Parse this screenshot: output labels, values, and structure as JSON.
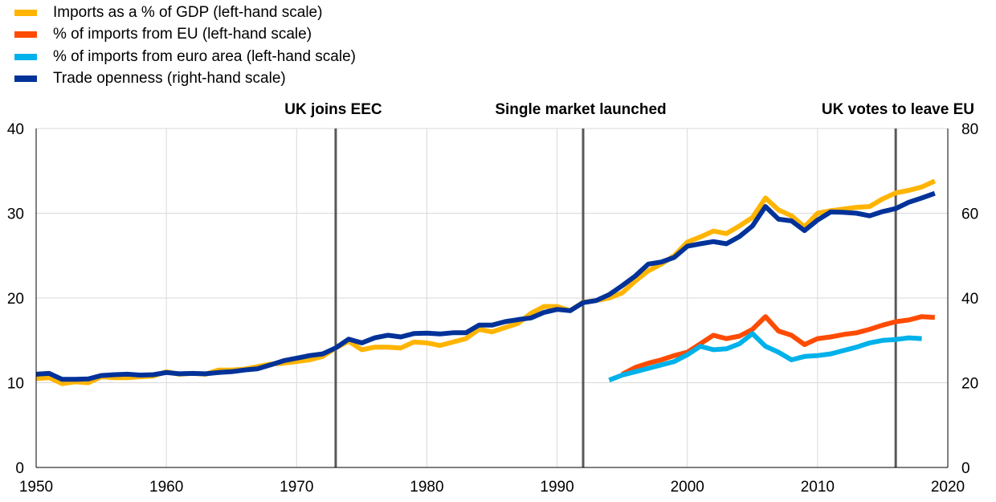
{
  "chart_data": {
    "type": "line",
    "title": "",
    "xlabel": "",
    "ylabel_left": "",
    "ylabel_right": "",
    "xlim": [
      1950,
      2020
    ],
    "ylim_left": [
      0,
      40
    ],
    "ylim_right": [
      0,
      80
    ],
    "x_ticks": [
      1950,
      1960,
      1970,
      1980,
      1990,
      2000,
      2010,
      2020
    ],
    "y_ticks_left": [
      0,
      10,
      20,
      30,
      40
    ],
    "y_ticks_right": [
      0,
      20,
      40,
      60,
      80
    ],
    "grid": true,
    "legend_position": "top-left",
    "series": [
      {
        "name": "Imports as a % of GDP (left-hand scale)",
        "axis": "left",
        "color": "#FFB400",
        "x": [
          1950,
          1951,
          1952,
          1953,
          1954,
          1955,
          1956,
          1957,
          1958,
          1959,
          1960,
          1961,
          1962,
          1963,
          1964,
          1965,
          1966,
          1967,
          1968,
          1969,
          1970,
          1971,
          1972,
          1973,
          1974,
          1975,
          1976,
          1977,
          1978,
          1979,
          1980,
          1981,
          1982,
          1983,
          1984,
          1985,
          1986,
          1987,
          1988,
          1989,
          1990,
          1991,
          1992,
          1993,
          1994,
          1995,
          1996,
          1997,
          1998,
          1999,
          2000,
          2001,
          2002,
          2003,
          2004,
          2005,
          2006,
          2007,
          2008,
          2009,
          2010,
          2011,
          2012,
          2013,
          2014,
          2015,
          2016,
          2017,
          2018,
          2019
        ],
        "values": [
          10.5,
          10.6,
          9.9,
          10.1,
          10.0,
          10.7,
          10.6,
          10.6,
          10.7,
          10.8,
          11.3,
          11.0,
          11.1,
          11.0,
          11.5,
          11.5,
          11.6,
          11.9,
          12.2,
          12.3,
          12.5,
          12.7,
          13.1,
          14.1,
          14.9,
          13.9,
          14.2,
          14.2,
          14.1,
          14.8,
          14.7,
          14.4,
          14.8,
          15.2,
          16.3,
          16.0,
          16.5,
          17.0,
          18.2,
          19.0,
          19.0,
          18.5,
          19.5,
          19.7,
          20.0,
          20.6,
          22.0,
          23.2,
          24.0,
          25.0,
          26.6,
          27.2,
          27.9,
          27.6,
          28.5,
          29.5,
          31.8,
          30.4,
          29.7,
          28.4,
          30.0,
          30.3,
          30.5,
          30.7,
          30.8,
          31.7,
          32.4,
          32.7,
          33.1,
          33.8
        ]
      },
      {
        "name": "% of imports from EU (left-hand scale)",
        "axis": "left",
        "color": "#FF4B00",
        "x": [
          1995,
          1996,
          1997,
          1998,
          1999,
          2000,
          2001,
          2002,
          2003,
          2004,
          2005,
          2006,
          2007,
          2008,
          2009,
          2010,
          2011,
          2012,
          2013,
          2014,
          2015,
          2016,
          2017,
          2018,
          2019
        ],
        "values": [
          11.0,
          11.8,
          12.3,
          12.7,
          13.2,
          13.6,
          14.6,
          15.6,
          15.2,
          15.5,
          16.3,
          17.8,
          16.1,
          15.6,
          14.5,
          15.2,
          15.4,
          15.7,
          15.9,
          16.3,
          16.8,
          17.2,
          17.4,
          17.8,
          17.7
        ]
      },
      {
        "name": "% of imports from euro area (left-hand scale)",
        "axis": "left",
        "color": "#00B1EA",
        "x": [
          1994,
          1995,
          1996,
          1997,
          1998,
          1999,
          2000,
          2001,
          2002,
          2003,
          2004,
          2005,
          2006,
          2007,
          2008,
          2009,
          2010,
          2011,
          2012,
          2013,
          2014,
          2015,
          2016,
          2017,
          2018
        ],
        "values": [
          10.3,
          10.9,
          11.3,
          11.7,
          12.1,
          12.5,
          13.3,
          14.3,
          13.9,
          14.0,
          14.6,
          15.8,
          14.3,
          13.6,
          12.7,
          13.1,
          13.2,
          13.4,
          13.8,
          14.2,
          14.7,
          15.0,
          15.1,
          15.3,
          15.2
        ]
      },
      {
        "name": "Trade openness (right-hand scale)",
        "axis": "right",
        "color": "#003299",
        "x": [
          1950,
          1951,
          1952,
          1953,
          1954,
          1955,
          1956,
          1957,
          1958,
          1959,
          1960,
          1961,
          1962,
          1963,
          1964,
          1965,
          1966,
          1967,
          1968,
          1969,
          1970,
          1971,
          1972,
          1973,
          1974,
          1975,
          1976,
          1977,
          1978,
          1979,
          1980,
          1981,
          1982,
          1983,
          1984,
          1985,
          1986,
          1987,
          1988,
          1989,
          1990,
          1991,
          1992,
          1993,
          1994,
          1995,
          1996,
          1997,
          1998,
          1999,
          2000,
          2001,
          2002,
          2003,
          2004,
          2005,
          2006,
          2007,
          2008,
          2009,
          2010,
          2011,
          2012,
          2013,
          2014,
          2015,
          2016,
          2017,
          2018,
          2019
        ],
        "values": [
          22.0,
          22.2,
          20.8,
          20.8,
          20.9,
          21.7,
          21.9,
          22.0,
          21.8,
          21.9,
          22.4,
          22.1,
          22.2,
          22.1,
          22.4,
          22.6,
          23.0,
          23.3,
          24.2,
          25.2,
          25.8,
          26.4,
          26.8,
          28.2,
          30.3,
          29.4,
          30.6,
          31.2,
          30.8,
          31.6,
          31.7,
          31.5,
          31.8,
          31.8,
          33.6,
          33.6,
          34.4,
          34.9,
          35.3,
          36.6,
          37.3,
          37.0,
          38.9,
          39.4,
          40.8,
          42.9,
          45.2,
          48.0,
          48.5,
          49.6,
          52.2,
          52.8,
          53.3,
          52.8,
          54.5,
          57.0,
          61.6,
          58.6,
          58.2,
          55.9,
          58.4,
          60.3,
          60.2,
          60.0,
          59.4,
          60.4,
          61.1,
          62.6,
          63.6,
          64.7
        ]
      }
    ],
    "annotations": [
      {
        "x": 1973,
        "label": "UK  joins EEC"
      },
      {
        "x": 1992,
        "label": "Single  market launched"
      },
      {
        "x": 2016,
        "label": "UK votes to  leave EU"
      }
    ]
  }
}
